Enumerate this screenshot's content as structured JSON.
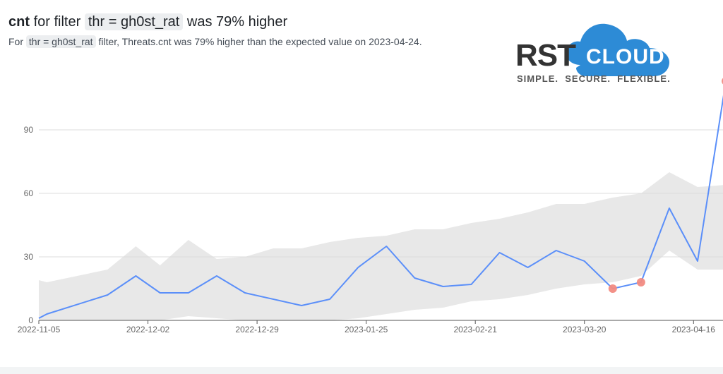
{
  "header": {
    "title_bold": "cnt",
    "title_mid": "for filter",
    "title_chip": "thr = gh0st_rat",
    "title_tail": "was 79% higher",
    "sub_pre": "For",
    "sub_chip": "thr = gh0st_rat",
    "sub_tail": "filter, Threats.cnt was 79% higher than the expected value on 2023-04-24."
  },
  "logo": {
    "rst": "RST",
    "cloud": "CLOUD",
    "tagline": "SIMPLE.  SECURE.  FLEXIBLE.",
    "colors": {
      "dark": "#333333",
      "blue": "#2d8bd6"
    }
  },
  "chart_data": {
    "type": "line",
    "x_ticks": [
      "2022-11-05",
      "2022-12-02",
      "2022-12-29",
      "2023-01-25",
      "2023-02-21",
      "2023-03-20",
      "2023-04-16"
    ],
    "y_ticks": [
      0,
      30,
      60,
      90
    ],
    "ylim": [
      0,
      120
    ],
    "x_start": "2022-11-05",
    "grid": true,
    "series": [
      {
        "values": [
          [
            "2022-11-05",
            1
          ],
          [
            "2022-11-07",
            3
          ],
          [
            "2022-11-22",
            12
          ],
          [
            "2022-11-29",
            21
          ],
          [
            "2022-12-05",
            13
          ],
          [
            "2022-12-12",
            13
          ],
          [
            "2022-12-19",
            21
          ],
          [
            "2022-12-26",
            13
          ],
          [
            "2023-01-09",
            7
          ],
          [
            "2023-01-16",
            10
          ],
          [
            "2023-01-23",
            25
          ],
          [
            "2023-01-30",
            35
          ],
          [
            "2023-02-06",
            20
          ],
          [
            "2023-02-13",
            16
          ],
          [
            "2023-02-20",
            17
          ],
          [
            "2023-02-27",
            32
          ],
          [
            "2023-03-06",
            25
          ],
          [
            "2023-03-13",
            33
          ],
          [
            "2023-03-20",
            28
          ],
          [
            "2023-03-27",
            15
          ],
          [
            "2023-04-03",
            18
          ],
          [
            "2023-04-10",
            53
          ],
          [
            "2023-04-17",
            28
          ],
          [
            "2023-04-24",
            113
          ]
        ],
        "color": "#5b8ff9"
      }
    ],
    "expected_band": [
      [
        "2022-11-05",
        0,
        19
      ],
      [
        "2022-11-07",
        0,
        18
      ],
      [
        "2022-11-22",
        0,
        24
      ],
      [
        "2022-11-29",
        0,
        35
      ],
      [
        "2022-12-05",
        0,
        26
      ],
      [
        "2022-12-12",
        2,
        38
      ],
      [
        "2022-12-19",
        1,
        29
      ],
      [
        "2022-12-26",
        0,
        30
      ],
      [
        "2023-01-02",
        0,
        34
      ],
      [
        "2023-01-09",
        0,
        34
      ],
      [
        "2023-01-16",
        0,
        37
      ],
      [
        "2023-01-23",
        1,
        39
      ],
      [
        "2023-01-30",
        3,
        40
      ],
      [
        "2023-02-06",
        5,
        43
      ],
      [
        "2023-02-13",
        6,
        43
      ],
      [
        "2023-02-20",
        9,
        46
      ],
      [
        "2023-02-27",
        10,
        48
      ],
      [
        "2023-03-06",
        12,
        51
      ],
      [
        "2023-03-13",
        15,
        55
      ],
      [
        "2023-03-20",
        17,
        55
      ],
      [
        "2023-03-27",
        18,
        58
      ],
      [
        "2023-04-03",
        21,
        60
      ],
      [
        "2023-04-10",
        33,
        70
      ],
      [
        "2023-04-17",
        24,
        63
      ],
      [
        "2023-04-24",
        24,
        64
      ]
    ],
    "anomalies": [
      [
        "2023-03-27",
        15
      ],
      [
        "2023-04-03",
        18
      ],
      [
        "2023-04-24",
        113
      ]
    ],
    "colors": {
      "band": "#e8e8e8",
      "anomaly": "#f28b82",
      "grid": "#dddddd",
      "axis": "#555555",
      "tick_text": "#666666"
    }
  }
}
